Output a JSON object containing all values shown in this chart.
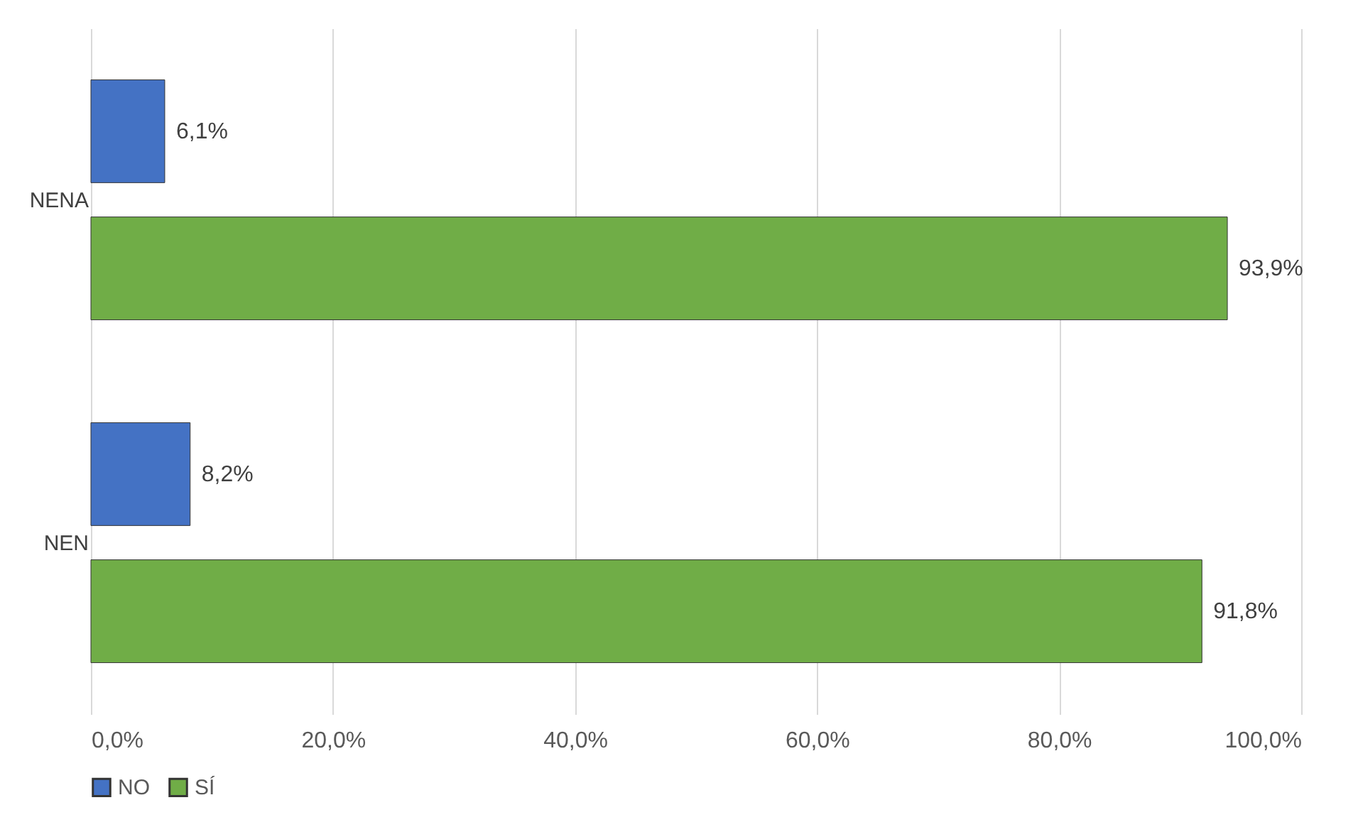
{
  "chart_data": {
    "type": "bar",
    "orientation": "horizontal",
    "categories": [
      "NENA",
      "NEN"
    ],
    "series": [
      {
        "name": "NO",
        "color": "#4472c4",
        "values": [
          6.1,
          8.2
        ],
        "value_labels": [
          "6,1%",
          "8,2%"
        ]
      },
      {
        "name": "SÍ",
        "color": "#70ad47",
        "values": [
          93.9,
          91.8
        ],
        "value_labels": [
          "93,9%",
          "91,8%"
        ]
      }
    ],
    "xlim": [
      0,
      100
    ],
    "xticks": [
      {
        "value": 0,
        "label": "0,0%"
      },
      {
        "value": 20,
        "label": "20,0%"
      },
      {
        "value": 40,
        "label": "40,0%"
      },
      {
        "value": 60,
        "label": "60,0%"
      },
      {
        "value": 80,
        "label": "80,0%"
      },
      {
        "value": 100,
        "label": "100,0%"
      }
    ],
    "grid": "x",
    "legend": "bottom"
  }
}
